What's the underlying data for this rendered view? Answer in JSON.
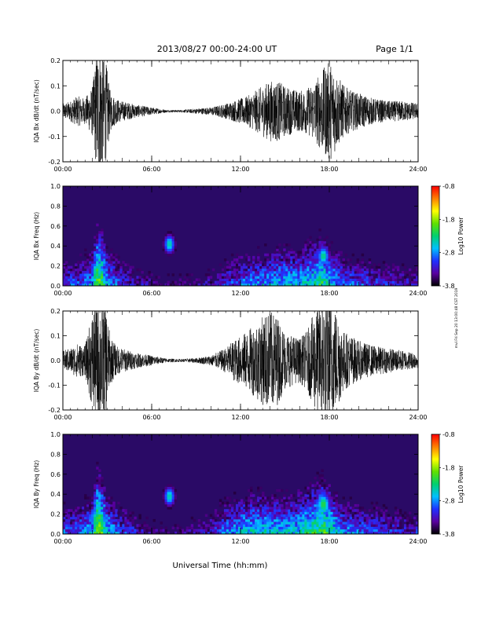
{
  "header": {
    "date_range": "2013/08/27  00:00-24:00 UT",
    "page": "Page 1/1"
  },
  "footer": {
    "xlabel": "Universal Time (hh:mm)",
    "stamp": "mvi Fri Sep 20 13:00:48 CST 2019"
  },
  "colors": {
    "trace": "#000000",
    "spectrogram_background": "#2a0a66",
    "colorbar": [
      "#000000",
      "#5a00a0",
      "#2030ff",
      "#00c0ff",
      "#00d070",
      "#60e000",
      "#ffff00",
      "#ff8000",
      "#ff0000"
    ]
  },
  "chart_data": [
    {
      "id": "bx-waveform",
      "type": "line",
      "ylabel": "IQA Bx dB/dt (nT/sec)",
      "ylim": [
        -0.2,
        0.2
      ],
      "yticks": [
        "0.2",
        "0.1",
        "0.0",
        "-0.1",
        "-0.2"
      ],
      "ytick_values": [
        0.2,
        0.1,
        0.0,
        -0.1,
        -0.2
      ],
      "xlim": [
        0,
        24
      ],
      "xticks": [
        "00:00",
        "06:00",
        "12:00",
        "18:00",
        "24:00"
      ],
      "xtick_values": [
        0,
        6,
        12,
        18,
        24
      ],
      "envelope": {
        "hours": [
          0,
          0.5,
          1,
          1.5,
          2,
          2.3,
          2.6,
          2.9,
          3.2,
          3.6,
          4,
          5,
          6,
          7,
          8,
          9,
          10,
          11,
          11.5,
          12,
          12.5,
          13,
          13.5,
          14,
          14.5,
          15,
          15.5,
          16,
          16.5,
          17,
          17.5,
          18,
          18.5,
          19,
          19.5,
          20,
          21,
          22,
          23,
          24
        ],
        "amplitude": [
          0.03,
          0.04,
          0.06,
          0.05,
          0.1,
          0.25,
          0.25,
          0.2,
          0.08,
          0.05,
          0.04,
          0.025,
          0.015,
          0.005,
          0.005,
          0.01,
          0.015,
          0.03,
          0.04,
          0.05,
          0.06,
          0.08,
          0.1,
          0.12,
          0.12,
          0.1,
          0.09,
          0.08,
          0.09,
          0.12,
          0.16,
          0.2,
          0.15,
          0.1,
          0.08,
          0.07,
          0.05,
          0.04,
          0.04,
          0.03
        ]
      }
    },
    {
      "id": "bx-spectrogram",
      "type": "heatmap",
      "ylabel": "IQA Bx Freq (Hz)",
      "ylim": [
        0.0,
        1.0
      ],
      "yticks": [
        "1.0",
        "0.8",
        "0.6",
        "0.4",
        "0.2",
        "0.0"
      ],
      "ytick_values": [
        1.0,
        0.8,
        0.6,
        0.4,
        0.2,
        0.0
      ],
      "xlim": [
        0,
        24
      ],
      "xticks": [
        "00:00",
        "06:00",
        "12:00",
        "18:00",
        "24:00"
      ],
      "xtick_values": [
        0,
        6,
        12,
        18,
        24
      ],
      "colorbar": {
        "label": "Log10 Power",
        "range": [
          -3.8,
          -0.8
        ],
        "ticks": [
          "-0.8",
          "-1.8",
          "-2.8",
          "-3.8"
        ],
        "tick_values": [
          -0.8,
          -1.8,
          -2.8,
          -3.8
        ]
      },
      "base_power": {
        "hours": [
          0,
          1,
          2,
          2.3,
          2.6,
          3,
          4,
          6,
          8,
          10,
          11,
          12,
          13,
          14,
          15,
          16,
          17,
          17.5,
          18,
          19,
          20,
          22,
          24
        ],
        "log_power": [
          -3.1,
          -3.0,
          -2.7,
          -1.9,
          -2.0,
          -2.7,
          -3.1,
          -3.5,
          -3.6,
          -3.4,
          -3.1,
          -2.9,
          -2.8,
          -2.7,
          -2.6,
          -2.6,
          -2.4,
          -2.2,
          -2.5,
          -2.9,
          -3.0,
          -3.2,
          -3.3
        ]
      },
      "features": [
        {
          "hour": 7.2,
          "freq": 0.42,
          "log_power": -2.4
        },
        {
          "hour": 2.3,
          "freq": 0.15,
          "log_power": -2.2
        },
        {
          "hour": 17.6,
          "freq": 0.3,
          "log_power": -2.3
        }
      ]
    },
    {
      "id": "by-waveform",
      "type": "line",
      "ylabel": "IQA By dB/dt (nT/sec)",
      "ylim": [
        -0.2,
        0.2
      ],
      "yticks": [
        "0.2",
        "0.1",
        "0.0",
        "-0.1",
        "-0.2"
      ],
      "ytick_values": [
        0.2,
        0.1,
        0.0,
        -0.1,
        -0.2
      ],
      "xlim": [
        0,
        24
      ],
      "xticks": [
        "00:00",
        "06:00",
        "12:00",
        "18:00",
        "24:00"
      ],
      "xtick_values": [
        0,
        6,
        12,
        18,
        24
      ],
      "envelope": {
        "hours": [
          0,
          0.5,
          1,
          1.5,
          2,
          2.3,
          2.6,
          2.9,
          3.2,
          3.6,
          4,
          5,
          6,
          7,
          8,
          9,
          10,
          11,
          11.5,
          12,
          12.5,
          13,
          13.5,
          14,
          14.5,
          15,
          15.5,
          16,
          16.5,
          17,
          17.5,
          18,
          18.5,
          19,
          19.5,
          20,
          21,
          22,
          23,
          24
        ],
        "amplitude": [
          0.04,
          0.05,
          0.07,
          0.06,
          0.2,
          0.25,
          0.25,
          0.22,
          0.1,
          0.06,
          0.05,
          0.03,
          0.02,
          0.008,
          0.006,
          0.01,
          0.02,
          0.05,
          0.08,
          0.1,
          0.12,
          0.15,
          0.18,
          0.2,
          0.18,
          0.12,
          0.1,
          0.09,
          0.12,
          0.2,
          0.25,
          0.25,
          0.2,
          0.12,
          0.1,
          0.08,
          0.06,
          0.05,
          0.04,
          0.03
        ]
      }
    },
    {
      "id": "by-spectrogram",
      "type": "heatmap",
      "ylabel": "IQA By Freq (Hz)",
      "ylim": [
        0.0,
        1.0
      ],
      "yticks": [
        "1.0",
        "0.8",
        "0.6",
        "0.4",
        "0.2",
        "0.0"
      ],
      "ytick_values": [
        1.0,
        0.8,
        0.6,
        0.4,
        0.2,
        0.0
      ],
      "xlim": [
        0,
        24
      ],
      "xticks": [
        "00:00",
        "06:00",
        "12:00",
        "18:00",
        "24:00"
      ],
      "xtick_values": [
        0,
        6,
        12,
        18,
        24
      ],
      "colorbar": {
        "label": "Log10 Power",
        "range": [
          -3.8,
          -0.8
        ],
        "ticks": [
          "-0.8",
          "-1.8",
          "-2.8",
          "-3.8"
        ],
        "tick_values": [
          -0.8,
          -1.8,
          -2.8,
          -3.8
        ]
      },
      "base_power": {
        "hours": [
          0,
          1,
          2,
          2.3,
          2.6,
          3,
          4,
          6,
          8,
          10,
          11,
          12,
          13,
          14,
          15,
          16,
          17,
          17.5,
          18,
          19,
          20,
          22,
          24
        ],
        "log_power": [
          -3.0,
          -2.9,
          -2.6,
          -1.8,
          -1.9,
          -2.6,
          -3.0,
          -3.5,
          -3.6,
          -3.2,
          -2.8,
          -2.6,
          -2.5,
          -2.5,
          -2.6,
          -2.5,
          -2.2,
          -2.0,
          -2.3,
          -2.8,
          -2.9,
          -3.1,
          -3.2
        ]
      },
      "features": [
        {
          "hour": 7.2,
          "freq": 0.38,
          "log_power": -2.4
        },
        {
          "hour": 2.3,
          "freq": 0.15,
          "log_power": -2.1
        },
        {
          "hour": 17.6,
          "freq": 0.3,
          "log_power": -2.1
        }
      ]
    }
  ]
}
